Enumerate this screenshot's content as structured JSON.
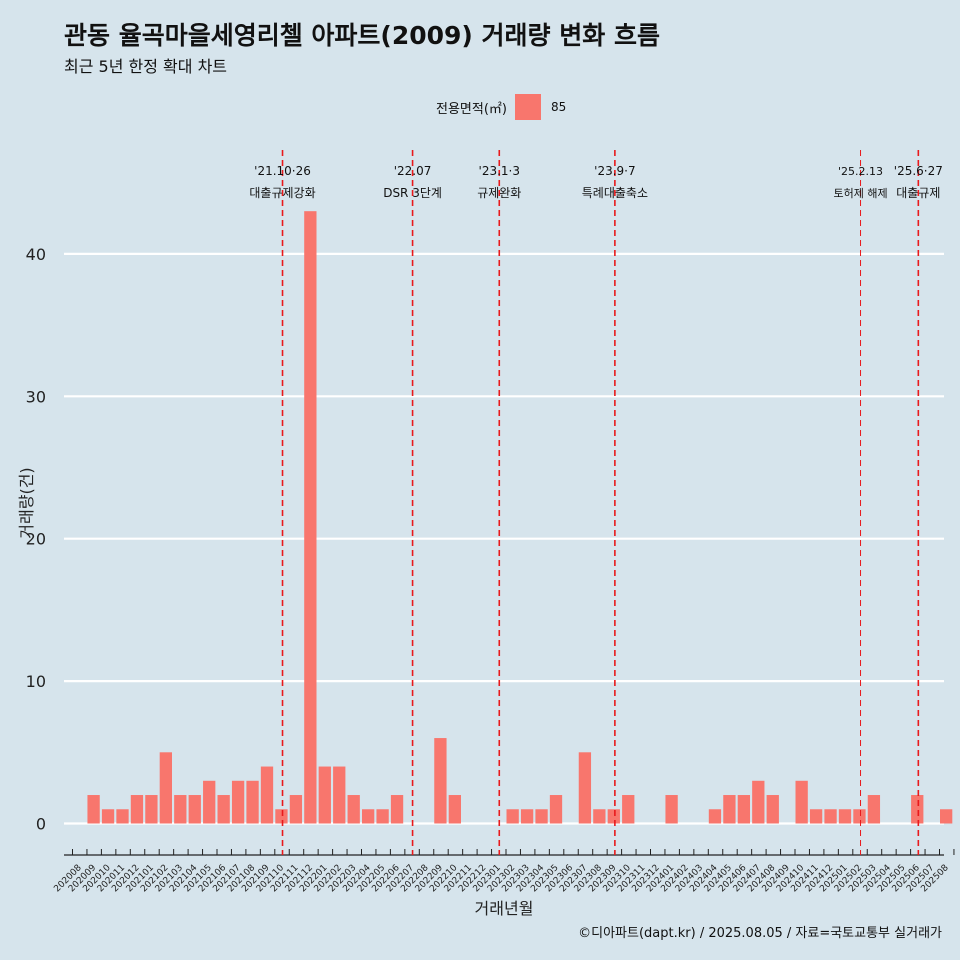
{
  "title": "관동 율곡마을세영리첼 아파트(2009) 거래량 변화 흐름",
  "subtitle": "최근 5년 한정 확대 차트",
  "legend": {
    "title": "전용면적(㎡)",
    "entry": "85",
    "color": "#f8766d"
  },
  "footer": "©디아파트(dapt.kr) / 2025.08.05 / 자료=국토교통부 실거래가",
  "chart_data": {
    "type": "bar",
    "xlabel": "거래년월",
    "ylabel": "거래량(건)",
    "ylim": [
      0,
      43
    ],
    "yticks": [
      0,
      10,
      20,
      30,
      40
    ],
    "grid": true,
    "bar_color": "#f8766d",
    "categories": [
      "202008",
      "202009",
      "202010",
      "202011",
      "202012",
      "202101",
      "202102",
      "202103",
      "202104",
      "202105",
      "202106",
      "202107",
      "202108",
      "202109",
      "202110",
      "202111",
      "202112",
      "202201",
      "202202",
      "202203",
      "202204",
      "202205",
      "202206",
      "202207",
      "202208",
      "202209",
      "202210",
      "202211",
      "202212",
      "202301",
      "202302",
      "202303",
      "202304",
      "202305",
      "202306",
      "202307",
      "202308",
      "202309",
      "202310",
      "202311",
      "202312",
      "202401",
      "202402",
      "202403",
      "202404",
      "202405",
      "202406",
      "202407",
      "202408",
      "202409",
      "202410",
      "202411",
      "202412",
      "202501",
      "202502",
      "202503",
      "202504",
      "202505",
      "202506",
      "202507",
      "202508"
    ],
    "series": [
      {
        "values": [
          0,
          2,
          1,
          1,
          2,
          2,
          5,
          2,
          2,
          3,
          2,
          3,
          3,
          4,
          1,
          2,
          43,
          4,
          4,
          2,
          1,
          1,
          2,
          0,
          0,
          6,
          2,
          0,
          0,
          0,
          1,
          1,
          1,
          2,
          0,
          5,
          1,
          1,
          2,
          0,
          0,
          2,
          0,
          0,
          1,
          2,
          2,
          3,
          2,
          0,
          3,
          1,
          1,
          1,
          1,
          2,
          0,
          0,
          2,
          0,
          1
        ]
      }
    ],
    "events": [
      {
        "date": "202110",
        "label1": "'21.10·26",
        "label2": "대출규제강화",
        "small": false
      },
      {
        "date": "202207",
        "label1": "'22.07",
        "label2": "DSR 3단계",
        "small": false
      },
      {
        "date": "202301",
        "label1": "'23.1·3",
        "label2": "규제완화",
        "small": false
      },
      {
        "date": "202309",
        "label1": "'23.9·7",
        "label2": "특례대출축소",
        "small": false
      },
      {
        "date": "202502",
        "label1": "'25.2.13",
        "label2": "토허제 해제",
        "small": true
      },
      {
        "date": "202506",
        "label1": "'25.6·27",
        "label2": "대출규제",
        "small": false
      }
    ]
  }
}
